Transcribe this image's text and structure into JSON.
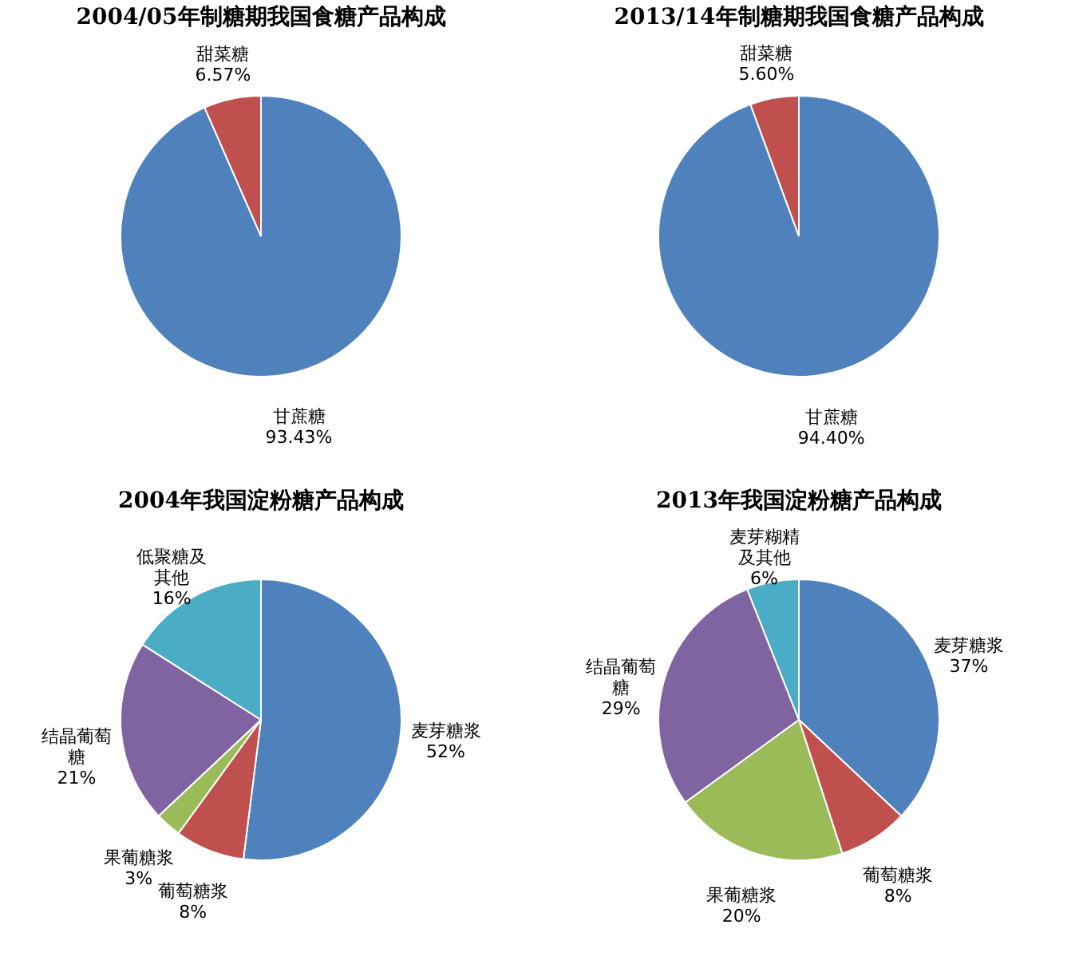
{
  "chart_data": [
    {
      "type": "pie",
      "title": "2004/05年制糖期我国食糖产品构成",
      "categories": [
        "甘蔗糖",
        "甜菜糖"
      ],
      "values": [
        93.43,
        6.57
      ],
      "value_labels": [
        "93.43%",
        "6.57%"
      ],
      "colors": [
        "#4f81bd",
        "#c0504d"
      ]
    },
    {
      "type": "pie",
      "title": "2013/14年制糖期我国食糖产品构成",
      "categories": [
        "甘蔗糖",
        "甜菜糖"
      ],
      "values": [
        94.4,
        5.6
      ],
      "value_labels": [
        "94.40%",
        "5.60%"
      ],
      "colors": [
        "#4f81bd",
        "#c0504d"
      ]
    },
    {
      "type": "pie",
      "title": "2004年我国淀粉糖产品构成",
      "categories": [
        "麦芽糖浆",
        "葡萄糖浆",
        "果葡糖浆",
        "结晶葡萄糖",
        "低聚糖及其他"
      ],
      "values": [
        52,
        8,
        3,
        21,
        16
      ],
      "value_labels": [
        "52%",
        "8%",
        "3%",
        "21%",
        "16%"
      ],
      "colors": [
        "#4f81bd",
        "#c0504d",
        "#9bbb59",
        "#8064a2",
        "#4bacc6"
      ]
    },
    {
      "type": "pie",
      "title": "2013年我国淀粉糖产品构成",
      "categories": [
        "麦芽糖浆",
        "葡萄糖浆",
        "果葡糖浆",
        "结晶葡萄糖",
        "麦芽糊精及其他"
      ],
      "values": [
        37,
        8,
        20,
        29,
        6
      ],
      "value_labels": [
        "37%",
        "8%",
        "20%",
        "29%",
        "6%"
      ],
      "colors": [
        "#4f81bd",
        "#c0504d",
        "#9bbb59",
        "#8064a2",
        "#4bacc6"
      ]
    }
  ]
}
